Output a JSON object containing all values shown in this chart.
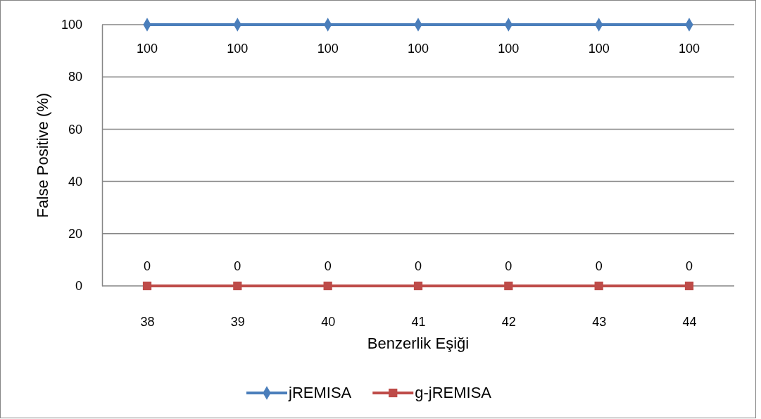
{
  "chart_data": {
    "type": "line",
    "xlabel": "Benzerlik Eşiği",
    "ylabel": "False Positive (%)",
    "categories": [
      "38",
      "39",
      "40",
      "41",
      "42",
      "43",
      "44"
    ],
    "series": [
      {
        "name": "jREMISA",
        "color": "#4a7ebb",
        "marker": "diamond",
        "values": [
          100,
          100,
          100,
          100,
          100,
          100,
          100
        ]
      },
      {
        "name": "g-jREMISA",
        "color": "#be4b48",
        "marker": "square",
        "values": [
          0,
          0,
          0,
          0,
          0,
          0,
          0
        ]
      }
    ],
    "ylim": [
      0,
      100
    ],
    "yticks": [
      0,
      20,
      40,
      60,
      80,
      100
    ],
    "grid": "y",
    "legend": "bottom",
    "data_labels": true
  }
}
